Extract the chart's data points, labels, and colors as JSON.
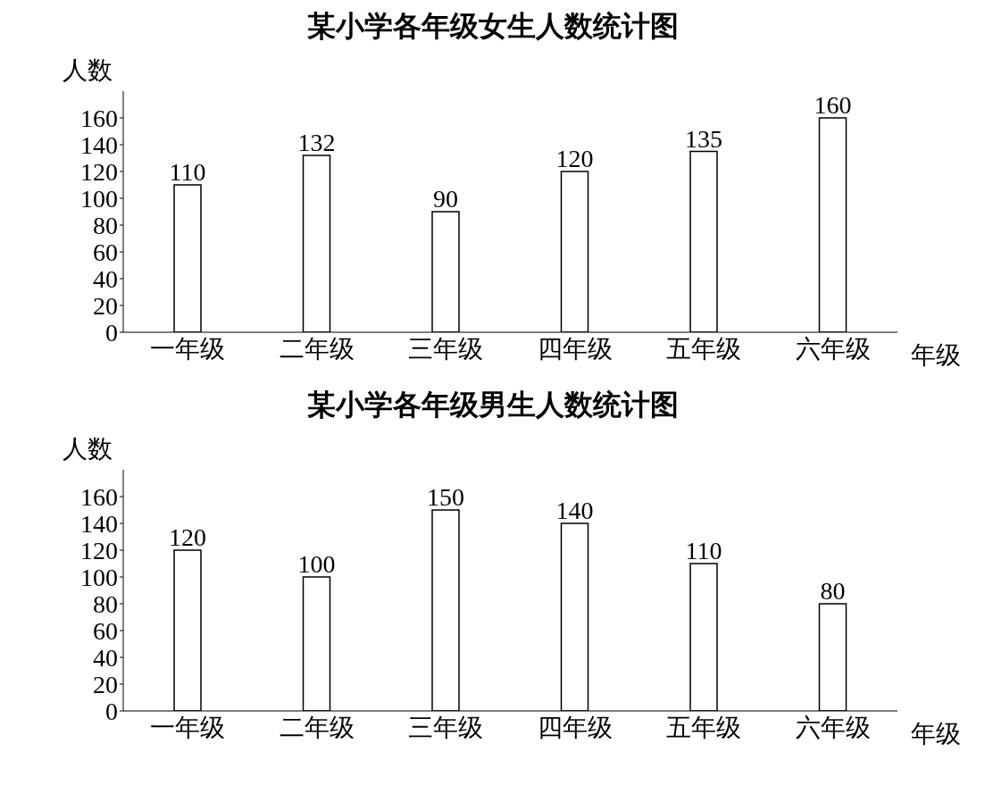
{
  "chart_data": [
    {
      "type": "bar",
      "title": "某小学各年级女生人数统计图",
      "xlabel": "年级",
      "ylabel": "人数",
      "categories": [
        "一年级",
        "二年级",
        "三年级",
        "四年级",
        "五年级",
        "六年级"
      ],
      "values": [
        110,
        132,
        90,
        120,
        135,
        160
      ],
      "color": "#ffffff",
      "ylim": [
        0,
        180
      ],
      "yticks": [
        0,
        20,
        40,
        60,
        80,
        100,
        120,
        140,
        160
      ],
      "grid": false,
      "data_labels": true
    },
    {
      "type": "bar",
      "title": "某小学各年级男生人数统计图",
      "xlabel": "年级",
      "ylabel": "人数",
      "categories": [
        "一年级",
        "二年级",
        "三年级",
        "四年级",
        "五年级",
        "六年级"
      ],
      "values": [
        120,
        100,
        150,
        140,
        110,
        80
      ],
      "color": "#ffffff",
      "ylim": [
        0,
        180
      ],
      "yticks": [
        0,
        20,
        40,
        60,
        80,
        100,
        120,
        140,
        160
      ],
      "grid": false,
      "data_labels": true
    }
  ]
}
